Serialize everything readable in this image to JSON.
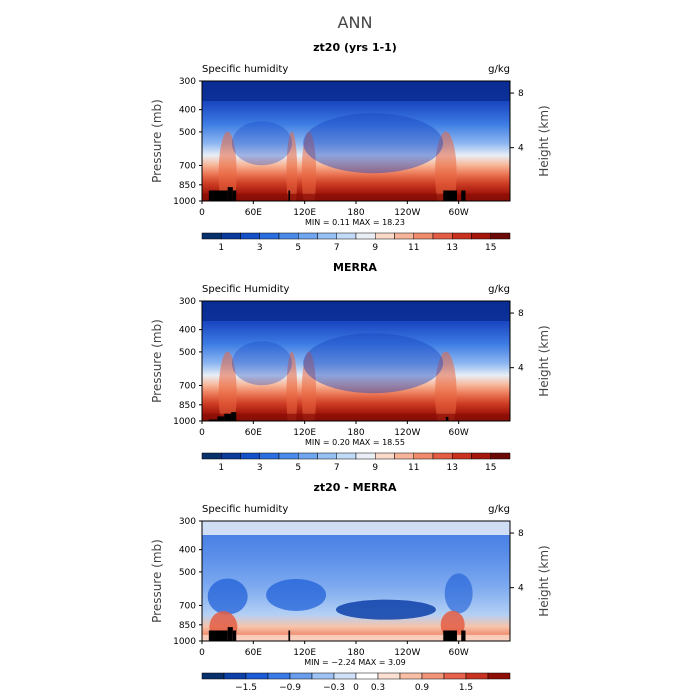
{
  "figure_title": "ANN",
  "chart_data": [
    {
      "type": "heatmap",
      "title": "zt20 (yrs 1-1)",
      "left_label": "Specific humidity",
      "units": "g/kg",
      "ylabel": "Pressure (mb)",
      "ylabel_right": "Height (km)",
      "y_ticks": [
        "300",
        "400",
        "500",
        "700",
        "850",
        "1000"
      ],
      "y_tick_values": [
        300,
        400,
        500,
        700,
        850,
        1000
      ],
      "right_ticks": [
        "8",
        "4"
      ],
      "right_tick_values": [
        8,
        4
      ],
      "x_ticks": [
        "0",
        "60E",
        "120E",
        "180",
        "120W",
        "60W"
      ],
      "x_tick_values": [
        0,
        60,
        120,
        180,
        240,
        300
      ],
      "xlim": [
        0,
        360
      ],
      "ylim": [
        1000,
        300
      ],
      "stats": "MIN =   0.11  MAX =  18.23",
      "colorbar": {
        "labels": [
          "1",
          "3",
          "5",
          "7",
          "9",
          "11",
          "13",
          "15"
        ],
        "colors": [
          "#08306b",
          "#0a3a9a",
          "#1450c8",
          "#2a6ee0",
          "#4a8ae8",
          "#6fa6ef",
          "#96c0f4",
          "#c2daf8",
          "#eaeff5",
          "#fbd9c9",
          "#f6b59a",
          "#f08c6c",
          "#e35d44",
          "#c9321e",
          "#a4150c",
          "#6b0a06"
        ]
      },
      "kind": "abs",
      "topo": "model"
    },
    {
      "type": "heatmap",
      "title": "MERRA",
      "left_label": "Specific Humidity",
      "units": "g/kg",
      "ylabel": "Pressure (mb)",
      "ylabel_right": "Height (km)",
      "y_ticks": [
        "300",
        "400",
        "500",
        "700",
        "850",
        "1000"
      ],
      "y_tick_values": [
        300,
        400,
        500,
        700,
        850,
        1000
      ],
      "right_ticks": [
        "8",
        "4"
      ],
      "right_tick_values": [
        8,
        4
      ],
      "x_ticks": [
        "0",
        "60E",
        "120E",
        "180",
        "120W",
        "60W"
      ],
      "x_tick_values": [
        0,
        60,
        120,
        180,
        240,
        300
      ],
      "xlim": [
        0,
        360
      ],
      "ylim": [
        1000,
        300
      ],
      "stats": "MIN =   0.20  MAX =  18.55",
      "colorbar": {
        "labels": [
          "1",
          "3",
          "5",
          "7",
          "9",
          "11",
          "13",
          "15"
        ],
        "colors": [
          "#08306b",
          "#0a3a9a",
          "#1450c8",
          "#2a6ee0",
          "#4a8ae8",
          "#6fa6ef",
          "#96c0f4",
          "#c2daf8",
          "#eaeff5",
          "#fbd9c9",
          "#f6b59a",
          "#f08c6c",
          "#e35d44",
          "#c9321e",
          "#a4150c",
          "#6b0a06"
        ]
      },
      "kind": "abs",
      "topo": "merra"
    },
    {
      "type": "heatmap",
      "title": "zt20 - MERRA",
      "left_label": "Specific humidity",
      "units": "g/kg",
      "ylabel": "Pressure (mb)",
      "ylabel_right": "Height (km)",
      "y_ticks": [
        "300",
        "400",
        "500",
        "700",
        "850",
        "1000"
      ],
      "y_tick_values": [
        300,
        400,
        500,
        700,
        850,
        1000
      ],
      "right_ticks": [
        "8",
        "4"
      ],
      "right_tick_values": [
        8,
        4
      ],
      "x_ticks": [
        "0",
        "60E",
        "120E",
        "180",
        "120W",
        "60W"
      ],
      "x_tick_values": [
        0,
        60,
        120,
        180,
        240,
        300
      ],
      "xlim": [
        0,
        360
      ],
      "ylim": [
        1000,
        300
      ],
      "stats": "MIN =  −2.24  MAX =    3.09",
      "colorbar": {
        "labels": [
          "−1.5",
          "−0.9",
          "−0.3",
          "0",
          "0.3",
          "0.9",
          "1.5"
        ],
        "colors": [
          "#08306b",
          "#0d3fa8",
          "#1a5bd6",
          "#3a7ae6",
          "#6b9ded",
          "#9fc2f4",
          "#cfe0f8",
          "#ffffff",
          "#fde0d2",
          "#f8bfa6",
          "#f2947a",
          "#e6624c",
          "#c73320",
          "#8f0f08"
        ]
      },
      "kind": "diff",
      "topo": "model"
    }
  ]
}
